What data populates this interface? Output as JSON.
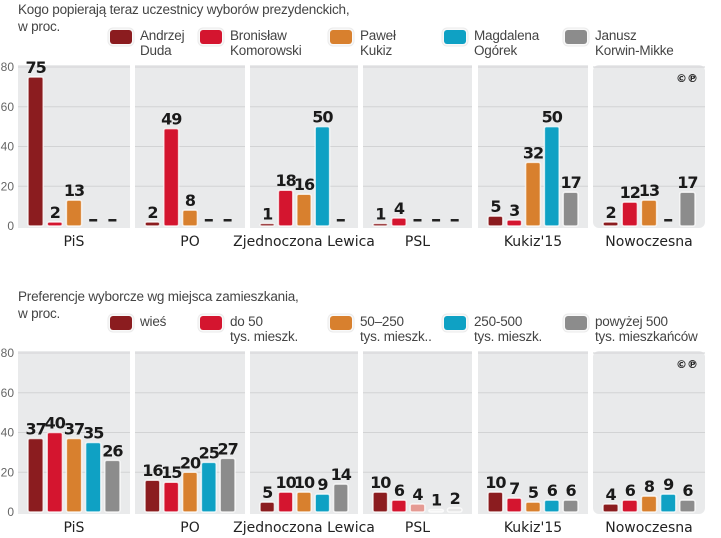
{
  "chart_data": [
    {
      "type": "bar",
      "title": "Kogo popierają teraz uczestnicy wyborów prezydenckich,\nw proc.",
      "title_line1": "Kogo popierają teraz uczestnicy wyborów prezydenckich,",
      "title_line2": "w proc.",
      "xlabel": "",
      "ylabel": "",
      "ylim": [
        0,
        80
      ],
      "yticks": [
        "0",
        "20",
        "40",
        "60",
        "80"
      ],
      "grid": true,
      "legend_position": "top",
      "categories": [
        "PiS",
        "PO",
        "Zjednoczona Lewica",
        "PSL",
        "Kukiz'15",
        "Nowoczesna"
      ],
      "series": [
        {
          "name": "Andrzej\nDuda",
          "color": "#8b1c1f",
          "values": [
            75,
            2,
            1,
            1,
            5,
            2
          ]
        },
        {
          "name": "Bronisław\nKomorowski",
          "color": "#d4152f",
          "values": [
            2,
            49,
            18,
            4,
            3,
            12
          ]
        },
        {
          "name": "Paweł\nKukiz",
          "color": "#d8802e",
          "values": [
            13,
            8,
            16,
            null,
            32,
            13
          ]
        },
        {
          "name": "Magdalena\nOgórek",
          "color": "#0fa1c4",
          "values": [
            null,
            null,
            50,
            null,
            50,
            null
          ]
        },
        {
          "name": "Janusz\nKorwin-Mikke",
          "color": "#8c8c8c",
          "values": [
            null,
            null,
            null,
            null,
            17,
            17
          ]
        }
      ],
      "missing_label": "–",
      "copyright_mark": "©℗"
    },
    {
      "type": "bar",
      "title": "Preferencje wyborcze wg miejsca zamieszkania,\nw proc.",
      "title_line1": "Preferencje wyborcze wg miejsca zamieszkania,",
      "title_line2": "w proc.",
      "xlabel": "",
      "ylabel": "",
      "ylim": [
        0,
        80
      ],
      "yticks": [
        "0",
        "20",
        "40",
        "60",
        "80"
      ],
      "grid": true,
      "legend_position": "top",
      "categories": [
        "PiS",
        "PO",
        "Zjednoczona Lewica",
        "PSL",
        "Kukiz'15",
        "Nowoczesna"
      ],
      "series": [
        {
          "name": "wieś",
          "color": "#8b1c1f",
          "values": [
            37,
            16,
            5,
            10,
            10,
            4
          ]
        },
        {
          "name": "do 50\ntys. mieszk.",
          "color": "#d4152f",
          "values": [
            40,
            15,
            10,
            6,
            7,
            6
          ]
        },
        {
          "name": "50–250\ntys. mieszk..",
          "color": "#d8802e",
          "values": [
            37,
            20,
            10,
            4,
            5,
            8
          ]
        },
        {
          "name": "250-500\ntys. mieszk.",
          "color": "#0fa1c4",
          "values": [
            35,
            25,
            9,
            1,
            6,
            9
          ]
        },
        {
          "name": "powyżej 500\ntys. mieszkańców",
          "color": "#8c8c8c",
          "values": [
            26,
            27,
            14,
            2,
            6,
            6
          ]
        }
      ],
      "copyright_mark": "©℗"
    }
  ]
}
